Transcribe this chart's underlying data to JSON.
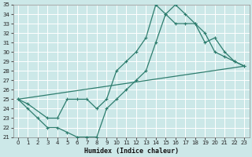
{
  "xlabel": "Humidex (Indice chaleur)",
  "background_color": "#cce8e8",
  "grid_color": "#b8d8d8",
  "line_color": "#2e7d6e",
  "xlim": [
    -0.5,
    23.5
  ],
  "ylim": [
    21,
    35
  ],
  "xticks": [
    0,
    1,
    2,
    3,
    4,
    5,
    6,
    7,
    8,
    9,
    10,
    11,
    12,
    13,
    14,
    15,
    16,
    17,
    18,
    19,
    20,
    21,
    22,
    23
  ],
  "yticks": [
    21,
    22,
    23,
    24,
    25,
    26,
    27,
    28,
    29,
    30,
    31,
    32,
    33,
    34,
    35
  ],
  "series1_x": [
    0,
    1,
    2,
    3,
    4,
    5,
    6,
    7,
    8,
    9,
    10,
    11,
    12,
    13,
    14,
    15,
    16,
    17,
    18,
    19,
    20,
    21,
    22,
    23
  ],
  "series1_y": [
    25,
    24,
    23,
    22,
    22,
    21.5,
    21,
    21,
    21,
    24,
    25,
    26,
    27,
    28,
    31,
    34,
    35,
    34,
    33,
    32,
    30,
    29.5,
    29,
    28.5
  ],
  "series2_x": [
    0,
    1,
    3,
    4,
    5,
    6,
    7,
    8,
    9,
    10,
    11,
    12,
    13,
    14,
    15,
    16,
    17,
    18,
    19,
    20,
    21,
    22,
    23
  ],
  "series2_y": [
    25,
    24.5,
    23,
    23,
    25,
    25,
    25,
    24,
    25,
    28,
    29,
    30,
    31.5,
    35,
    34,
    33,
    33,
    33,
    31,
    31.5,
    30,
    29,
    28.5
  ],
  "series3_x": [
    0,
    23
  ],
  "series3_y": [
    25,
    28.5
  ]
}
